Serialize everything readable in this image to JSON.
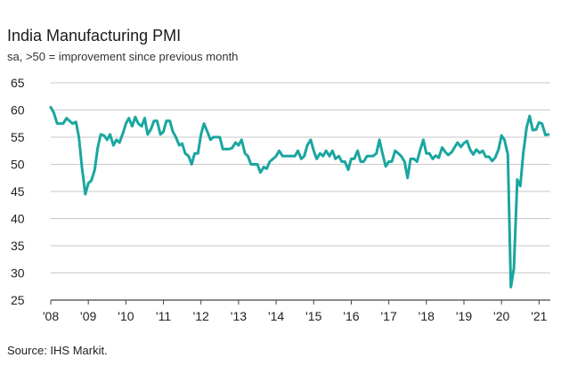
{
  "title": "India Manufacturing PMI",
  "subtitle": "sa, >50 = improvement since previous month",
  "source": "Source: IHS Markit.",
  "colors": {
    "line": "#1aa6a0",
    "grid": "#c9c9c9",
    "axis": "#444444"
  },
  "chart_data": {
    "type": "line",
    "title": "India Manufacturing PMI",
    "subtitle": "sa, >50 = improvement since previous month",
    "xlabel": "",
    "ylabel": "",
    "ylim": [
      25,
      65
    ],
    "yticks": [
      25,
      30,
      35,
      40,
      45,
      50,
      55,
      60,
      65
    ],
    "xlim": [
      2008.0,
      2021.3
    ],
    "xticks": [
      {
        "value": 2008,
        "label": "'08"
      },
      {
        "value": 2009,
        "label": "'09"
      },
      {
        "value": 2010,
        "label": "'10"
      },
      {
        "value": 2011,
        "label": "'11"
      },
      {
        "value": 2012,
        "label": "'12"
      },
      {
        "value": 2013,
        "label": "'13"
      },
      {
        "value": 2014,
        "label": "'14"
      },
      {
        "value": 2015,
        "label": "'15"
      },
      {
        "value": 2016,
        "label": "'16"
      },
      {
        "value": 2017,
        "label": "'17"
      },
      {
        "value": 2018,
        "label": "'18"
      },
      {
        "value": 2019,
        "label": "'19"
      },
      {
        "value": 2020,
        "label": "'20"
      },
      {
        "value": 2021,
        "label": "'21"
      }
    ],
    "grid": true,
    "series": [
      {
        "name": "India Manufacturing PMI",
        "x": [
          2008.0,
          2008.08,
          2008.17,
          2008.25,
          2008.33,
          2008.42,
          2008.5,
          2008.58,
          2008.67,
          2008.75,
          2008.83,
          2008.92,
          2009.0,
          2009.08,
          2009.17,
          2009.25,
          2009.33,
          2009.42,
          2009.5,
          2009.58,
          2009.67,
          2009.75,
          2009.83,
          2009.92,
          2010.0,
          2010.08,
          2010.17,
          2010.25,
          2010.33,
          2010.42,
          2010.5,
          2010.58,
          2010.67,
          2010.75,
          2010.83,
          2010.92,
          2011.0,
          2011.08,
          2011.17,
          2011.25,
          2011.33,
          2011.42,
          2011.5,
          2011.58,
          2011.67,
          2011.75,
          2011.83,
          2011.92,
          2012.0,
          2012.08,
          2012.17,
          2012.25,
          2012.33,
          2012.42,
          2012.5,
          2012.58,
          2012.67,
          2012.75,
          2012.83,
          2012.92,
          2013.0,
          2013.08,
          2013.17,
          2013.25,
          2013.33,
          2013.42,
          2013.5,
          2013.58,
          2013.67,
          2013.75,
          2013.83,
          2013.92,
          2014.0,
          2014.08,
          2014.17,
          2014.25,
          2014.33,
          2014.42,
          2014.5,
          2014.58,
          2014.67,
          2014.75,
          2014.83,
          2014.92,
          2015.0,
          2015.08,
          2015.17,
          2015.25,
          2015.33,
          2015.42,
          2015.5,
          2015.58,
          2015.67,
          2015.75,
          2015.83,
          2015.92,
          2016.0,
          2016.08,
          2016.17,
          2016.25,
          2016.33,
          2016.42,
          2016.5,
          2016.58,
          2016.67,
          2016.75,
          2016.83,
          2016.92,
          2017.0,
          2017.08,
          2017.17,
          2017.25,
          2017.33,
          2017.42,
          2017.5,
          2017.58,
          2017.67,
          2017.75,
          2017.83,
          2017.92,
          2018.0,
          2018.08,
          2018.17,
          2018.25,
          2018.33,
          2018.42,
          2018.5,
          2018.58,
          2018.67,
          2018.75,
          2018.83,
          2018.92,
          2019.0,
          2019.08,
          2019.17,
          2019.25,
          2019.33,
          2019.42,
          2019.5,
          2019.58,
          2019.67,
          2019.75,
          2019.83,
          2019.92,
          2020.0,
          2020.08,
          2020.17,
          2020.25,
          2020.33,
          2020.42,
          2020.5,
          2020.58,
          2020.67,
          2020.75,
          2020.83,
          2020.92,
          2021.0,
          2021.08,
          2021.17,
          2021.25
        ],
        "y": [
          60.5,
          59.5,
          57.5,
          57.5,
          57.5,
          58.5,
          58.0,
          57.5,
          57.8,
          55.0,
          49.5,
          44.5,
          46.5,
          47.0,
          49.0,
          53.0,
          55.5,
          55.3,
          54.5,
          55.5,
          53.5,
          54.5,
          54.0,
          55.7,
          57.5,
          58.5,
          57.0,
          58.7,
          57.5,
          57.0,
          58.5,
          55.5,
          56.5,
          58.0,
          58.0,
          55.5,
          56.0,
          58.0,
          58.0,
          56.0,
          55.0,
          53.5,
          53.8,
          52.0,
          51.5,
          50.0,
          52.0,
          52.0,
          55.5,
          57.5,
          56.0,
          54.5,
          55.0,
          55.0,
          55.0,
          52.8,
          52.8,
          52.8,
          53.0,
          54.0,
          53.5,
          54.5,
          52.0,
          51.5,
          50.0,
          50.0,
          50.0,
          48.5,
          49.5,
          49.2,
          50.5,
          51.0,
          51.5,
          52.5,
          51.5,
          51.5,
          51.5,
          51.5,
          51.5,
          52.5,
          51.0,
          51.5,
          53.5,
          54.5,
          52.5,
          51.0,
          52.0,
          51.5,
          52.5,
          51.5,
          52.5,
          51.0,
          51.5,
          50.5,
          50.5,
          49.0,
          51.0,
          51.0,
          52.5,
          50.5,
          50.5,
          51.5,
          51.5,
          51.5,
          52.0,
          54.5,
          52.0,
          49.6,
          50.5,
          50.5,
          52.5,
          52.0,
          51.5,
          50.5,
          47.5,
          51.0,
          51.0,
          50.5,
          52.5,
          54.5,
          52.0,
          52.0,
          51.0,
          51.6,
          51.2,
          53.1,
          52.3,
          51.7,
          52.2,
          53.1,
          54.0,
          53.2,
          53.9,
          54.3,
          52.6,
          51.8,
          52.7,
          52.1,
          52.5,
          51.4,
          51.4,
          50.6,
          51.2,
          52.7,
          55.3,
          54.5,
          51.8,
          27.4,
          30.8,
          47.2,
          46.0,
          52.0,
          56.8,
          58.9,
          56.3,
          56.4,
          57.7,
          57.5,
          55.4,
          55.5
        ]
      }
    ]
  }
}
